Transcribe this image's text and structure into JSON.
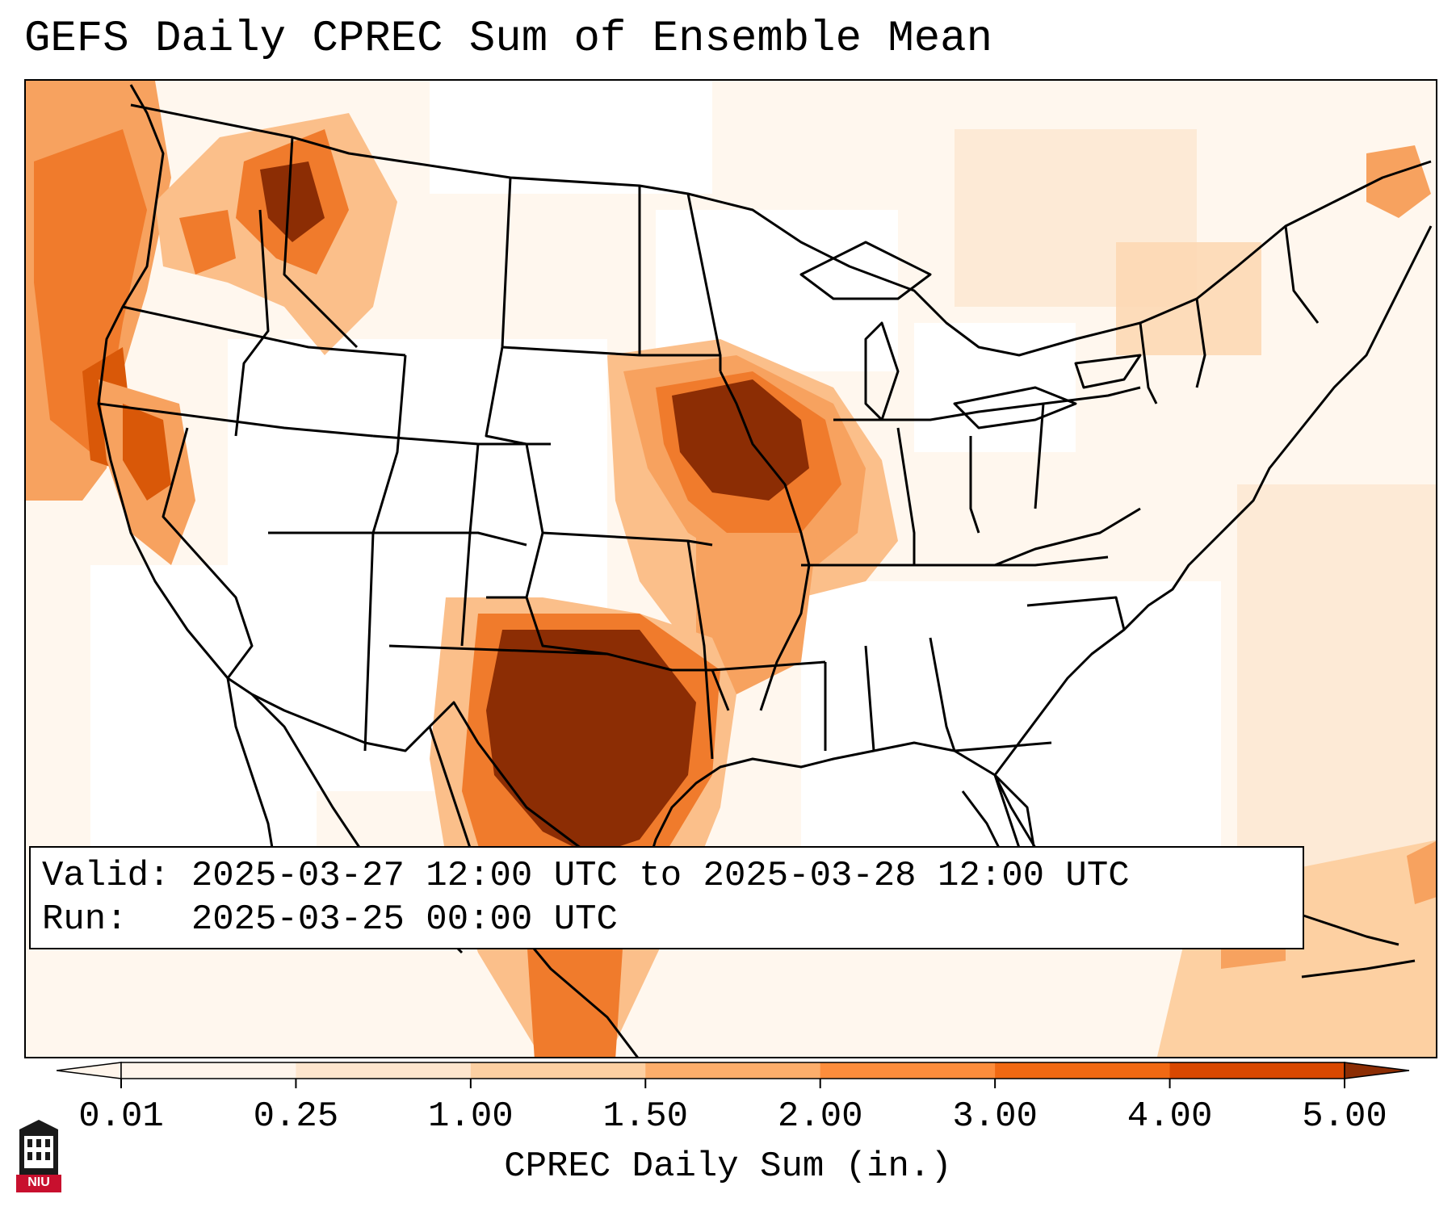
{
  "title": "GEFS Daily CPREC Sum of Ensemble Mean",
  "info": {
    "valid_label": "Valid:",
    "valid_value": "2025-03-27 12:00 UTC to 2025-03-28 12:00 UTC",
    "run_label": "Run:",
    "run_value": "2025-03-25 00:00 UTC"
  },
  "colorbar": {
    "title": "CPREC Daily Sum (in.)",
    "ticks": [
      "0.01",
      "0.25",
      "1.00",
      "1.50",
      "2.00",
      "3.00",
      "4.00",
      "5.00"
    ],
    "colors": [
      "#fff5eb",
      "#fee6ce",
      "#fdd0a2",
      "#fdae6b",
      "#fd8d3c",
      "#f16913",
      "#d94801",
      "#8c2d04"
    ],
    "extend": "both"
  },
  "map": {
    "region": "Contiguous United States",
    "heavy_precip_areas": [
      "Texas",
      "Missouri",
      "Iowa",
      "Northern Idaho",
      "Northern California coast",
      "Pacific Northwest coast"
    ]
  },
  "logo": {
    "text": "NIU"
  }
}
